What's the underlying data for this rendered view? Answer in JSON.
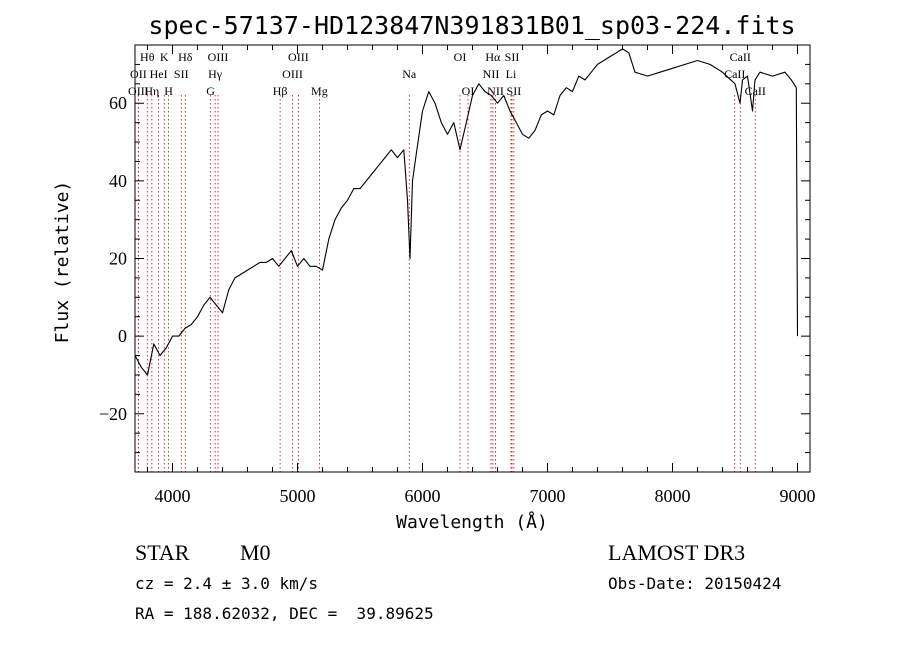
{
  "chart_data": {
    "type": "line",
    "title": "spec-57137-HD123847N391831B01_sp03-224.fits",
    "xlabel": "Wavelength (Å)",
    "ylabel": "Flux (relative)",
    "xlim": [
      3700,
      9100
    ],
    "ylim": [
      -35,
      75
    ],
    "x_ticks": [
      4000,
      5000,
      6000,
      7000,
      8000,
      9000
    ],
    "y_ticks": [
      -20,
      0,
      20,
      40,
      60
    ],
    "grid": false,
    "series": [
      {
        "x": [
          3700,
          3750,
          3800,
          3850,
          3900,
          3950,
          4000,
          4050,
          4100,
          4150,
          4200,
          4250,
          4300,
          4350,
          4400,
          4450,
          4500,
          4550,
          4600,
          4650,
          4700,
          4750,
          4800,
          4850,
          4900,
          4950,
          5000,
          5050,
          5100,
          5150,
          5200,
          5250,
          5300,
          5350,
          5400,
          5450,
          5500,
          5550,
          5600,
          5650,
          5700,
          5750,
          5800,
          5850,
          5880,
          5900,
          5920,
          5950,
          6000,
          6050,
          6100,
          6150,
          6200,
          6250,
          6300,
          6350,
          6400,
          6450,
          6500,
          6550,
          6600,
          6650,
          6700,
          6750,
          6800,
          6850,
          6900,
          6950,
          7000,
          7050,
          7100,
          7150,
          7200,
          7250,
          7300,
          7350,
          7400,
          7450,
          7500,
          7550,
          7600,
          7650,
          7700,
          7800,
          7900,
          8000,
          8100,
          8200,
          8300,
          8400,
          8500,
          8540,
          8560,
          8600,
          8640,
          8660,
          8700,
          8800,
          8900,
          8950,
          8990,
          9000
        ],
        "y": [
          -5,
          -8,
          -10,
          -2,
          -5,
          -3,
          0,
          0,
          2,
          3,
          5,
          8,
          10,
          8,
          6,
          12,
          15,
          16,
          17,
          18,
          19,
          19,
          20,
          18,
          20,
          22,
          18,
          20,
          18,
          18,
          17,
          25,
          30,
          33,
          35,
          38,
          38,
          40,
          42,
          44,
          46,
          48,
          46,
          48,
          35,
          20,
          40,
          47,
          58,
          63,
          60,
          55,
          52,
          55,
          48,
          55,
          62,
          65,
          63,
          62,
          60,
          62,
          58,
          55,
          52,
          51,
          53,
          57,
          58,
          57,
          62,
          64,
          63,
          67,
          66,
          68,
          70,
          71,
          72,
          73,
          74,
          73,
          68,
          67,
          68,
          69,
          70,
          71,
          70,
          68,
          65,
          60,
          66,
          67,
          58,
          66,
          68,
          67,
          68,
          66,
          64,
          0
        ]
      }
    ],
    "line_labels": [
      {
        "text": "Hθ",
        "x": 3798,
        "row": 1
      },
      {
        "text": "OII",
        "x": 3727,
        "row": 2
      },
      {
        "text": "OIII",
        "x": 3727,
        "row": 3
      },
      {
        "text": "K",
        "x": 3934,
        "row": 1
      },
      {
        "text": "HeI",
        "x": 3889,
        "row": 2
      },
      {
        "text": "Hη",
        "x": 3835,
        "row": 3
      },
      {
        "text": "Hδ",
        "x": 4102,
        "row": 1
      },
      {
        "text": "SII",
        "x": 4070,
        "row": 2
      },
      {
        "text": "H",
        "x": 3969,
        "row": 3
      },
      {
        "text": "OIII",
        "x": 4364,
        "row": 1
      },
      {
        "text": "Hγ",
        "x": 4341,
        "row": 2
      },
      {
        "text": "G",
        "x": 4305,
        "row": 3
      },
      {
        "text": "OIII",
        "x": 5007,
        "row": 1
      },
      {
        "text": "OIII",
        "x": 4960,
        "row": 2
      },
      {
        "text": "Hβ",
        "x": 4861,
        "row": 3
      },
      {
        "text": "Mg",
        "x": 5175,
        "row": 3
      },
      {
        "text": "Na",
        "x": 5894,
        "row": 2
      },
      {
        "text": "OI",
        "x": 6300,
        "row": 1
      },
      {
        "text": "OI",
        "x": 6364,
        "row": 3
      },
      {
        "text": "Hα",
        "x": 6563,
        "row": 1
      },
      {
        "text": "SII",
        "x": 6716,
        "row": 1
      },
      {
        "text": "NII",
        "x": 6548,
        "row": 2
      },
      {
        "text": "Li",
        "x": 6708,
        "row": 2
      },
      {
        "text": "NII",
        "x": 6584,
        "row": 3
      },
      {
        "text": "SII",
        "x": 6731,
        "row": 3
      },
      {
        "text": "CaII",
        "x": 8542,
        "row": 1
      },
      {
        "text": "CaII",
        "x": 8498,
        "row": 2
      },
      {
        "text": "CaII",
        "x": 8662,
        "row": 3
      }
    ]
  },
  "info": {
    "class": "STAR",
    "subclass": "M0",
    "cz": "cz = 2.4 ± 3.0 km/s",
    "radec": "RA = 188.62032, DEC =  39.89625",
    "survey": "LAMOST DR3",
    "obs_date": "Obs-Date: 20150424"
  },
  "colors": {
    "axis": "#000000",
    "spectrum": "#000000",
    "line_markers": "#c00000"
  }
}
